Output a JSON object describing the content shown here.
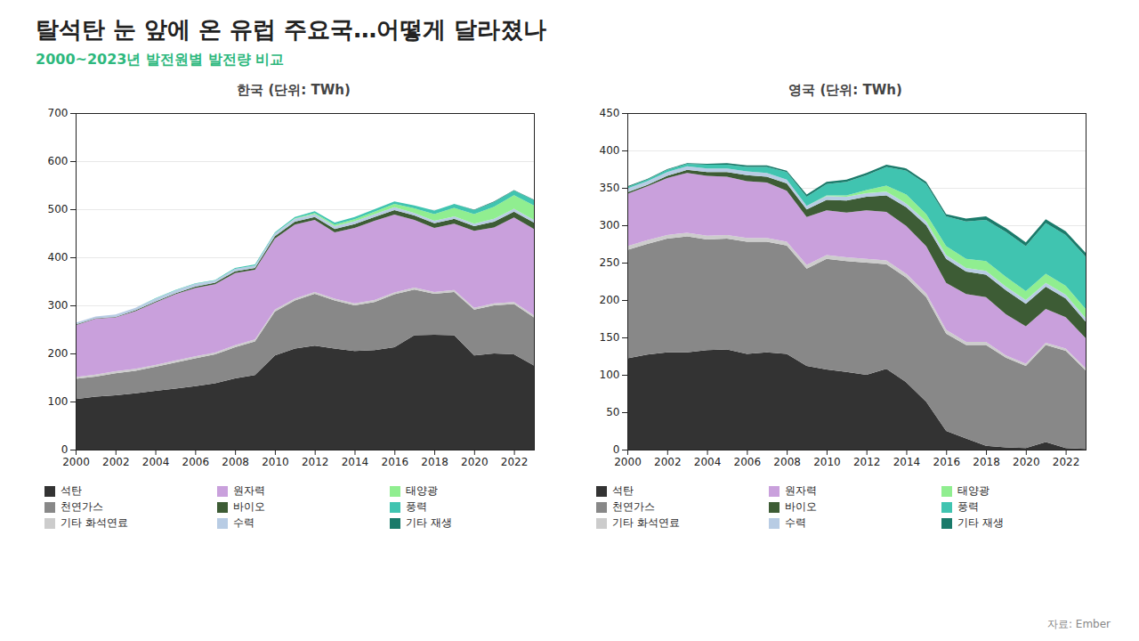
{
  "title": "탈석탄 눈 앞에 온 유럽 주요국…어떻게 달라졌나",
  "subtitle": "2000~2023년 발전원별 발전량 비교",
  "annotations": [
    "자료: Ember"
  ],
  "chart_data": [
    {
      "type": "area",
      "title": "한국 (단위: TWh)",
      "stacked": true,
      "grid": true,
      "legend": "bottom",
      "x": [
        2000,
        2001,
        2002,
        2003,
        2004,
        2005,
        2006,
        2007,
        2008,
        2009,
        2010,
        2011,
        2012,
        2013,
        2014,
        2015,
        2016,
        2017,
        2018,
        2019,
        2020,
        2021,
        2022,
        2023
      ],
      "xlim": [
        2000,
        2023
      ],
      "xticks": [
        2000,
        2002,
        2004,
        2006,
        2008,
        2010,
        2012,
        2014,
        2016,
        2018,
        2020,
        2022
      ],
      "ylim": [
        0,
        700
      ],
      "yticks": [
        0,
        100,
        200,
        300,
        400,
        500,
        600,
        700
      ],
      "series": [
        {
          "name": "석탄",
          "color": "#333333",
          "values": [
            105,
            110,
            113,
            117,
            122,
            127,
            132,
            138,
            148,
            155,
            196,
            210,
            216,
            210,
            205,
            207,
            213,
            238,
            239,
            238,
            196,
            200,
            198,
            175
          ]
        },
        {
          "name": "천연가스",
          "color": "#888888",
          "values": [
            42,
            42,
            46,
            47,
            50,
            54,
            58,
            60,
            65,
            70,
            91,
            100,
            108,
            100,
            95,
            100,
            110,
            95,
            85,
            90,
            95,
            100,
            105,
            100
          ]
        },
        {
          "name": "기타 화석연료",
          "color": "#cccccc",
          "values": [
            4,
            4,
            4,
            4,
            4,
            4,
            4,
            4,
            4,
            4,
            4,
            4,
            4,
            4,
            4,
            4,
            4,
            4,
            4,
            4,
            4,
            4,
            4,
            4
          ]
        },
        {
          "name": "원자력",
          "color": "#c9a0dc",
          "values": [
            108,
            116,
            112,
            120,
            130,
            138,
            142,
            142,
            150,
            145,
            148,
            154,
            150,
            138,
            157,
            165,
            162,
            141,
            133,
            138,
            160,
            158,
            176,
            180
          ]
        },
        {
          "name": "바이오",
          "color": "#3d5c35",
          "values": [
            1,
            1,
            1,
            2,
            2,
            2,
            3,
            3,
            4,
            4,
            5,
            6,
            6,
            7,
            8,
            8,
            9,
            9,
            10,
            10,
            10,
            12,
            12,
            13
          ]
        },
        {
          "name": "수력",
          "color": "#b8cce4",
          "values": [
            4,
            4,
            5,
            5,
            6,
            6,
            6,
            5,
            5,
            5,
            6,
            6,
            6,
            6,
            6,
            6,
            6,
            5,
            5,
            5,
            5,
            6,
            6,
            6
          ]
        },
        {
          "name": "태양광",
          "color": "#90ee90",
          "values": [
            0,
            0,
            0,
            0,
            0,
            0,
            0,
            0,
            0,
            0,
            0,
            1,
            2,
            3,
            4,
            5,
            7,
            10,
            14,
            18,
            20,
            25,
            28,
            30
          ]
        },
        {
          "name": "풍력",
          "color": "#40c4b0",
          "values": [
            0,
            0,
            0,
            0,
            1,
            1,
            1,
            1,
            2,
            2,
            2,
            3,
            4,
            4,
            5,
            5,
            5,
            6,
            7,
            8,
            8,
            10,
            10,
            11
          ]
        },
        {
          "name": "기타 재생",
          "color": "#1a7a6a",
          "values": [
            0,
            0,
            0,
            0,
            0,
            0,
            0,
            0,
            0,
            0,
            0,
            0,
            0,
            0,
            0,
            0,
            0,
            0,
            0,
            0,
            1,
            1,
            1,
            1
          ]
        }
      ]
    },
    {
      "type": "area",
      "title": "영국 (단위: TWh)",
      "stacked": true,
      "grid": true,
      "legend": "bottom",
      "x": [
        2000,
        2001,
        2002,
        2003,
        2004,
        2005,
        2006,
        2007,
        2008,
        2009,
        2010,
        2011,
        2012,
        2013,
        2014,
        2015,
        2016,
        2017,
        2018,
        2019,
        2020,
        2021,
        2022,
        2023
      ],
      "xlim": [
        2000,
        2023
      ],
      "xticks": [
        2000,
        2002,
        2004,
        2006,
        2008,
        2010,
        2012,
        2014,
        2016,
        2018,
        2020,
        2022
      ],
      "ylim": [
        0,
        450
      ],
      "yticks": [
        0,
        50,
        100,
        150,
        200,
        250,
        300,
        350,
        400,
        450
      ],
      "series": [
        {
          "name": "석탄",
          "color": "#333333",
          "values": [
            122,
            127,
            130,
            130,
            133,
            134,
            128,
            130,
            128,
            112,
            107,
            104,
            100,
            108,
            90,
            64,
            25,
            15,
            5,
            3,
            2,
            10,
            2,
            1
          ]
        },
        {
          "name": "천연가스",
          "color": "#888888",
          "values": [
            145,
            148,
            152,
            155,
            148,
            148,
            150,
            148,
            145,
            130,
            148,
            148,
            150,
            140,
            140,
            140,
            130,
            125,
            135,
            120,
            110,
            130,
            130,
            105
          ]
        },
        {
          "name": "기타 화석연료",
          "color": "#cccccc",
          "values": [
            5,
            5,
            5,
            5,
            5,
            5,
            5,
            5,
            5,
            5,
            5,
            5,
            5,
            5,
            5,
            5,
            5,
            4,
            4,
            3,
            3,
            3,
            3,
            3
          ]
        },
        {
          "name": "원자력",
          "color": "#c9a0dc",
          "values": [
            70,
            72,
            76,
            80,
            80,
            78,
            76,
            74,
            68,
            64,
            60,
            60,
            65,
            65,
            64,
            63,
            63,
            64,
            60,
            55,
            50,
            45,
            42,
            40
          ]
        },
        {
          "name": "바이오",
          "color": "#3d5c35",
          "values": [
            2,
            2,
            3,
            4,
            5,
            6,
            8,
            8,
            10,
            10,
            14,
            16,
            18,
            22,
            25,
            28,
            32,
            30,
            30,
            32,
            30,
            30,
            25,
            22
          ]
        },
        {
          "name": "수력",
          "color": "#b8cce4",
          "values": [
            5,
            5,
            5,
            5,
            5,
            5,
            5,
            5,
            5,
            5,
            5,
            5,
            5,
            5,
            5,
            5,
            5,
            5,
            5,
            5,
            5,
            5,
            5,
            5
          ]
        },
        {
          "name": "태양광",
          "color": "#90ee90",
          "values": [
            0,
            0,
            0,
            0,
            0,
            0,
            0,
            0,
            0,
            0,
            1,
            2,
            4,
            8,
            12,
            10,
            12,
            12,
            13,
            13,
            12,
            12,
            12,
            12
          ]
        },
        {
          "name": "풍력",
          "color": "#40c4b0",
          "values": [
            2,
            2,
            3,
            3,
            5,
            5,
            6,
            8,
            10,
            12,
            15,
            18,
            20,
            25,
            32,
            40,
            40,
            50,
            55,
            60,
            60,
            68,
            68,
            70
          ]
        },
        {
          "name": "기타 재생",
          "color": "#1a7a6a",
          "values": [
            1,
            1,
            1,
            1,
            1,
            2,
            2,
            2,
            2,
            3,
            3,
            3,
            3,
            3,
            3,
            3,
            3,
            4,
            5,
            5,
            5,
            5,
            5,
            5
          ]
        }
      ]
    }
  ]
}
